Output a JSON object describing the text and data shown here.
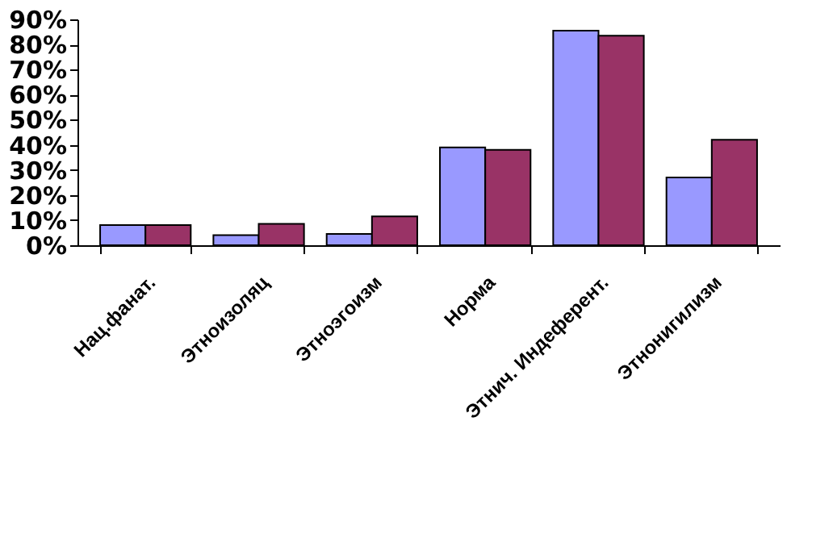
{
  "chart_data": {
    "type": "bar",
    "categories": [
      "Нац.фанат.",
      "Этноизоляц",
      "Этноэгоизм",
      "Норма",
      "Этнич. Индеферент.",
      "Этнонигилизм"
    ],
    "series": [
      {
        "color": "#9999ff",
        "values": [
          8,
          4,
          4.5,
          39,
          85.5,
          27
        ]
      },
      {
        "color": "#993366",
        "values": [
          8,
          8.5,
          11.5,
          38,
          83.5,
          42
        ]
      }
    ],
    "ylim": [
      0,
      90
    ],
    "yticks": [
      {
        "value": 0,
        "label": "0%"
      },
      {
        "value": 10,
        "label": "10%"
      },
      {
        "value": 20,
        "label": "20%"
      },
      {
        "value": 30,
        "label": "30%"
      },
      {
        "value": 40,
        "label": "40%"
      },
      {
        "value": 50,
        "label": "50%"
      },
      {
        "value": 60,
        "label": "60%"
      },
      {
        "value": 70,
        "label": "70%"
      },
      {
        "value": 80,
        "label": "80%"
      },
      {
        "value": 90,
        "label": "90%"
      }
    ],
    "grid": false,
    "legend": false
  }
}
